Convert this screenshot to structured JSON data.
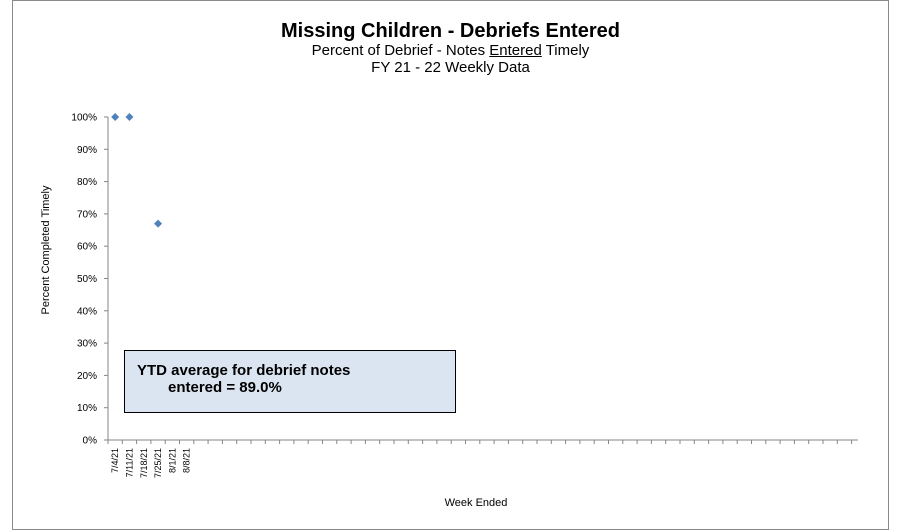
{
  "chart_data": {
    "type": "scatter",
    "title": "Missing Children - Debriefs Entered",
    "subtitle_pre": "Percent of Debrief - Notes ",
    "subtitle_underlined": "Entered",
    "subtitle_post": " Timely",
    "subtitle2": "FY 21 - 22  Weekly Data",
    "xlabel": "Week Ended",
    "ylabel": "Percent Completed Timely",
    "ylim": [
      0,
      100
    ],
    "y_ticks": [
      "0%",
      "10%",
      "20%",
      "30%",
      "40%",
      "50%",
      "60%",
      "70%",
      "80%",
      "90%",
      "100%"
    ],
    "categories": [
      "7/4/21",
      "7/11/21",
      "7/18/21",
      "7/25/21",
      "8/1/21",
      "8/8/21"
    ],
    "series": [
      {
        "values": [
          100,
          100,
          null,
          67,
          null,
          null
        ],
        "color": "#4f81bd",
        "marker": "diamond"
      }
    ],
    "grid": false,
    "annotation": {
      "line1": "YTD average for debrief notes",
      "line2": "entered =  89.0%",
      "background": "#dbe5f1"
    }
  }
}
